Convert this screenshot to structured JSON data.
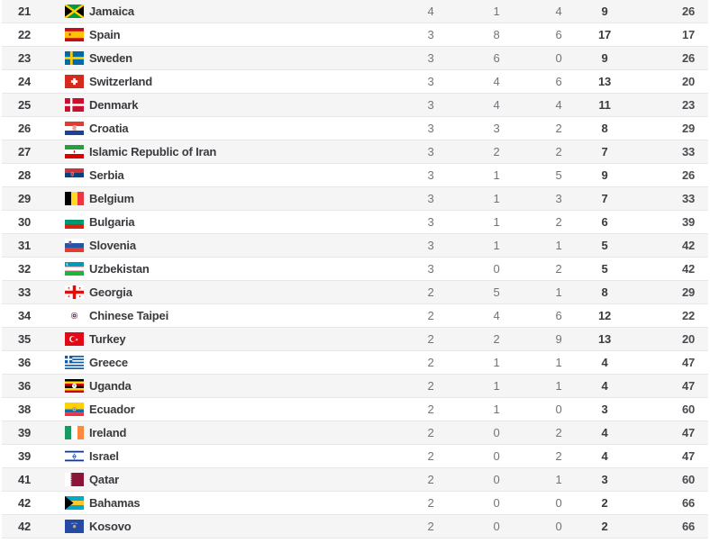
{
  "colors": {
    "row_alt_background": "#f5f5f6",
    "row_border": "#e7e7e9",
    "text_dark": "#3a3a3f",
    "text_muted": "#73737b"
  },
  "table": {
    "rows": [
      {
        "rank": "21",
        "flag": "jamaica",
        "country": "Jamaica",
        "gold": "4",
        "silver": "1",
        "bronze": "4",
        "total": "9",
        "rank_by_total": "26"
      },
      {
        "rank": "22",
        "flag": "spain",
        "country": "Spain",
        "gold": "3",
        "silver": "8",
        "bronze": "6",
        "total": "17",
        "rank_by_total": "17"
      },
      {
        "rank": "23",
        "flag": "sweden",
        "country": "Sweden",
        "gold": "3",
        "silver": "6",
        "bronze": "0",
        "total": "9",
        "rank_by_total": "26"
      },
      {
        "rank": "24",
        "flag": "switzerland",
        "country": "Switzerland",
        "gold": "3",
        "silver": "4",
        "bronze": "6",
        "total": "13",
        "rank_by_total": "20"
      },
      {
        "rank": "25",
        "flag": "denmark",
        "country": "Denmark",
        "gold": "3",
        "silver": "4",
        "bronze": "4",
        "total": "11",
        "rank_by_total": "23"
      },
      {
        "rank": "26",
        "flag": "croatia",
        "country": "Croatia",
        "gold": "3",
        "silver": "3",
        "bronze": "2",
        "total": "8",
        "rank_by_total": "29"
      },
      {
        "rank": "27",
        "flag": "iran",
        "country": "Islamic Republic of Iran",
        "gold": "3",
        "silver": "2",
        "bronze": "2",
        "total": "7",
        "rank_by_total": "33"
      },
      {
        "rank": "28",
        "flag": "serbia",
        "country": "Serbia",
        "gold": "3",
        "silver": "1",
        "bronze": "5",
        "total": "9",
        "rank_by_total": "26"
      },
      {
        "rank": "29",
        "flag": "belgium",
        "country": "Belgium",
        "gold": "3",
        "silver": "1",
        "bronze": "3",
        "total": "7",
        "rank_by_total": "33"
      },
      {
        "rank": "30",
        "flag": "bulgaria",
        "country": "Bulgaria",
        "gold": "3",
        "silver": "1",
        "bronze": "2",
        "total": "6",
        "rank_by_total": "39"
      },
      {
        "rank": "31",
        "flag": "slovenia",
        "country": "Slovenia",
        "gold": "3",
        "silver": "1",
        "bronze": "1",
        "total": "5",
        "rank_by_total": "42"
      },
      {
        "rank": "32",
        "flag": "uzbekistan",
        "country": "Uzbekistan",
        "gold": "3",
        "silver": "0",
        "bronze": "2",
        "total": "5",
        "rank_by_total": "42"
      },
      {
        "rank": "33",
        "flag": "georgia",
        "country": "Georgia",
        "gold": "2",
        "silver": "5",
        "bronze": "1",
        "total": "8",
        "rank_by_total": "29"
      },
      {
        "rank": "34",
        "flag": "chinese-taipei",
        "country": "Chinese Taipei",
        "gold": "2",
        "silver": "4",
        "bronze": "6",
        "total": "12",
        "rank_by_total": "22"
      },
      {
        "rank": "35",
        "flag": "turkey",
        "country": "Turkey",
        "gold": "2",
        "silver": "2",
        "bronze": "9",
        "total": "13",
        "rank_by_total": "20"
      },
      {
        "rank": "36",
        "flag": "greece",
        "country": "Greece",
        "gold": "2",
        "silver": "1",
        "bronze": "1",
        "total": "4",
        "rank_by_total": "47"
      },
      {
        "rank": "36",
        "flag": "uganda",
        "country": "Uganda",
        "gold": "2",
        "silver": "1",
        "bronze": "1",
        "total": "4",
        "rank_by_total": "47"
      },
      {
        "rank": "38",
        "flag": "ecuador",
        "country": "Ecuador",
        "gold": "2",
        "silver": "1",
        "bronze": "0",
        "total": "3",
        "rank_by_total": "60"
      },
      {
        "rank": "39",
        "flag": "ireland",
        "country": "Ireland",
        "gold": "2",
        "silver": "0",
        "bronze": "2",
        "total": "4",
        "rank_by_total": "47"
      },
      {
        "rank": "39",
        "flag": "israel",
        "country": "Israel",
        "gold": "2",
        "silver": "0",
        "bronze": "2",
        "total": "4",
        "rank_by_total": "47"
      },
      {
        "rank": "41",
        "flag": "qatar",
        "country": "Qatar",
        "gold": "2",
        "silver": "0",
        "bronze": "1",
        "total": "3",
        "rank_by_total": "60"
      },
      {
        "rank": "42",
        "flag": "bahamas",
        "country": "Bahamas",
        "gold": "2",
        "silver": "0",
        "bronze": "0",
        "total": "2",
        "rank_by_total": "66"
      },
      {
        "rank": "42",
        "flag": "kosovo",
        "country": "Kosovo",
        "gold": "2",
        "silver": "0",
        "bronze": "0",
        "total": "2",
        "rank_by_total": "66"
      }
    ]
  }
}
